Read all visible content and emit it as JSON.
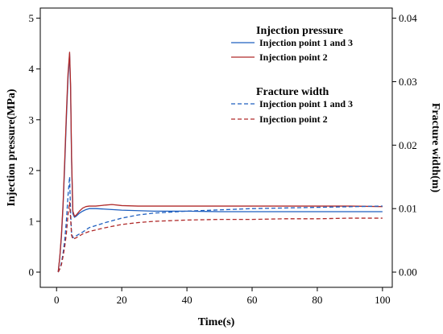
{
  "chart_data": {
    "type": "line",
    "title": "",
    "xlabel": "Time(s)",
    "ylabel_left": "Injection pressure(MPa)",
    "ylabel_right": "Fracture width(m)",
    "xlim": [
      -5,
      103
    ],
    "ylim_left": [
      -0.3,
      5.2
    ],
    "ylim_right": [
      -0.0024,
      0.0416
    ],
    "x_ticks": [
      0,
      20,
      40,
      60,
      80,
      100
    ],
    "y_ticks_left": [
      0,
      1,
      2,
      3,
      4,
      5
    ],
    "y_ticks_right": [
      0.0,
      0.01,
      0.02,
      0.03,
      0.04
    ],
    "y_tick_labels_right": [
      "0.00",
      "0.01",
      "0.02",
      "0.03",
      "0.04"
    ],
    "grid": false,
    "legend_placement": "top-right",
    "legend_groups": [
      {
        "heading": "Injection pressure",
        "entries": [
          {
            "label": "Injection point 1 and 3",
            "color": "#1f5fbf",
            "dash": "solid"
          },
          {
            "label": "Injection point 2",
            "color": "#b02a2a",
            "dash": "solid"
          }
        ]
      },
      {
        "heading": "Fracture width",
        "entries": [
          {
            "label": "Injection point 1 and 3",
            "color": "#1f5fbf",
            "dash": "dashed"
          },
          {
            "label": "Injection point 2",
            "color": "#b02a2a",
            "dash": "dashed"
          }
        ]
      }
    ],
    "series": [
      {
        "group": "Injection pressure",
        "axis": "left",
        "color": "#1f5fbf",
        "dash": "solid",
        "x": [
          0.5,
          1.0,
          1.5,
          2.0,
          2.5,
          3.0,
          3.5,
          4.0,
          4.3,
          4.6,
          5.0,
          5.5,
          6.0,
          7.0,
          8.0,
          9.0,
          10,
          12,
          15,
          20,
          25,
          30,
          40,
          50,
          60,
          70,
          80,
          90,
          100
        ],
        "y": [
          0.0,
          0.3,
          0.7,
          1.3,
          2.1,
          3.0,
          3.8,
          4.3,
          3.6,
          2.2,
          1.15,
          1.08,
          1.1,
          1.16,
          1.2,
          1.23,
          1.25,
          1.25,
          1.24,
          1.22,
          1.21,
          1.2,
          1.2,
          1.19,
          1.19,
          1.19,
          1.19,
          1.19,
          1.19
        ]
      },
      {
        "group": "Injection pressure",
        "axis": "left",
        "color": "#b02a2a",
        "dash": "solid",
        "x": [
          0.5,
          1.0,
          1.5,
          2.0,
          2.5,
          3.0,
          3.5,
          4.0,
          4.3,
          4.6,
          5.0,
          5.5,
          6.0,
          7.0,
          8.0,
          9.0,
          10,
          12,
          15,
          17,
          20,
          25,
          30,
          40,
          50,
          60,
          70,
          80,
          90,
          100
        ],
        "y": [
          0.0,
          0.3,
          0.75,
          1.35,
          2.2,
          3.1,
          3.9,
          4.33,
          3.7,
          2.3,
          1.2,
          1.1,
          1.12,
          1.2,
          1.26,
          1.29,
          1.3,
          1.3,
          1.32,
          1.33,
          1.31,
          1.3,
          1.3,
          1.3,
          1.3,
          1.3,
          1.3,
          1.3,
          1.3,
          1.29
        ]
      },
      {
        "group": "Fracture width",
        "axis": "right",
        "color": "#1f5fbf",
        "dash": "dashed",
        "x": [
          0.5,
          1.0,
          1.5,
          2.0,
          2.5,
          3.0,
          3.5,
          4.0,
          4.3,
          4.6,
          5.0,
          6.0,
          8.0,
          10,
          15,
          20,
          25,
          30,
          40,
          50,
          60,
          70,
          80,
          90,
          100
        ],
        "y": [
          0.0,
          0.0005,
          0.0015,
          0.003,
          0.005,
          0.008,
          0.012,
          0.015,
          0.0095,
          0.0062,
          0.0054,
          0.0057,
          0.0063,
          0.007,
          0.0078,
          0.0085,
          0.009,
          0.0093,
          0.0096,
          0.0098,
          0.01,
          0.0101,
          0.0102,
          0.0103,
          0.0104
        ]
      },
      {
        "group": "Fracture width",
        "axis": "right",
        "color": "#b02a2a",
        "dash": "dashed",
        "x": [
          0.5,
          1.0,
          1.5,
          2.0,
          2.5,
          3.0,
          3.5,
          4.0,
          4.3,
          4.6,
          5.0,
          6.0,
          8.0,
          10,
          15,
          20,
          25,
          30,
          40,
          50,
          60,
          70,
          80,
          90,
          100
        ],
        "y": [
          0.0,
          0.0005,
          0.0012,
          0.0025,
          0.004,
          0.006,
          0.009,
          0.011,
          0.0085,
          0.0058,
          0.0052,
          0.0054,
          0.006,
          0.0064,
          0.007,
          0.0075,
          0.0078,
          0.008,
          0.0082,
          0.0083,
          0.0083,
          0.0084,
          0.0084,
          0.0085,
          0.0085
        ]
      }
    ]
  }
}
